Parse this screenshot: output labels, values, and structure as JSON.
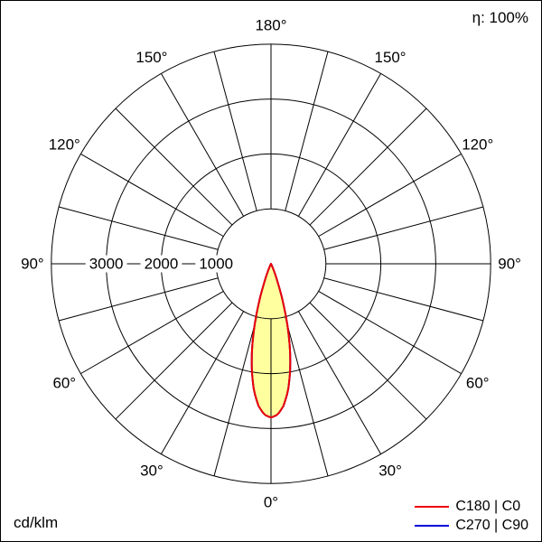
{
  "meta": {
    "efficiency_label": "η: 100%",
    "unit_label": "cd/klm"
  },
  "legend": [
    {
      "label": "C180 | C0",
      "color": "#ee0000"
    },
    {
      "label": "C270 | C90",
      "color": "#0000dd"
    }
  ],
  "chart_data": {
    "type": "polar",
    "subtype": "luminous-intensity-distribution",
    "unit": "cd/klm",
    "efficiency_percent": 100,
    "angle_grid_step_deg": 15,
    "angle_labels_deg": [
      0,
      30,
      60,
      90,
      120,
      150,
      180
    ],
    "radial_ticks": [
      1000,
      2000,
      3000
    ],
    "rlim": [
      0,
      4000
    ],
    "legend_position": "bottom-right",
    "series": [
      {
        "name": "C180 | C0",
        "color": "#ee0000",
        "fill": "#ffffa0",
        "gamma_deg": [
          0,
          2.5,
          5,
          7.5,
          10,
          12.5,
          15,
          17.5,
          20,
          22.5,
          25,
          27.5,
          30,
          35
        ],
        "values_cd_per_klm": [
          2800,
          2750,
          2600,
          2350,
          2000,
          1600,
          1150,
          700,
          350,
          150,
          50,
          15,
          5,
          0
        ]
      },
      {
        "name": "C270 | C90",
        "color": "#0000dd",
        "fill": "none",
        "gamma_deg": [
          0,
          2.5,
          5,
          7.5,
          10,
          12.5,
          15,
          17.5,
          20,
          22.5,
          25,
          27.5,
          30,
          35
        ],
        "values_cd_per_klm": [
          2800,
          2750,
          2600,
          2350,
          2000,
          1600,
          1150,
          700,
          350,
          150,
          50,
          15,
          5,
          0
        ]
      }
    ]
  }
}
